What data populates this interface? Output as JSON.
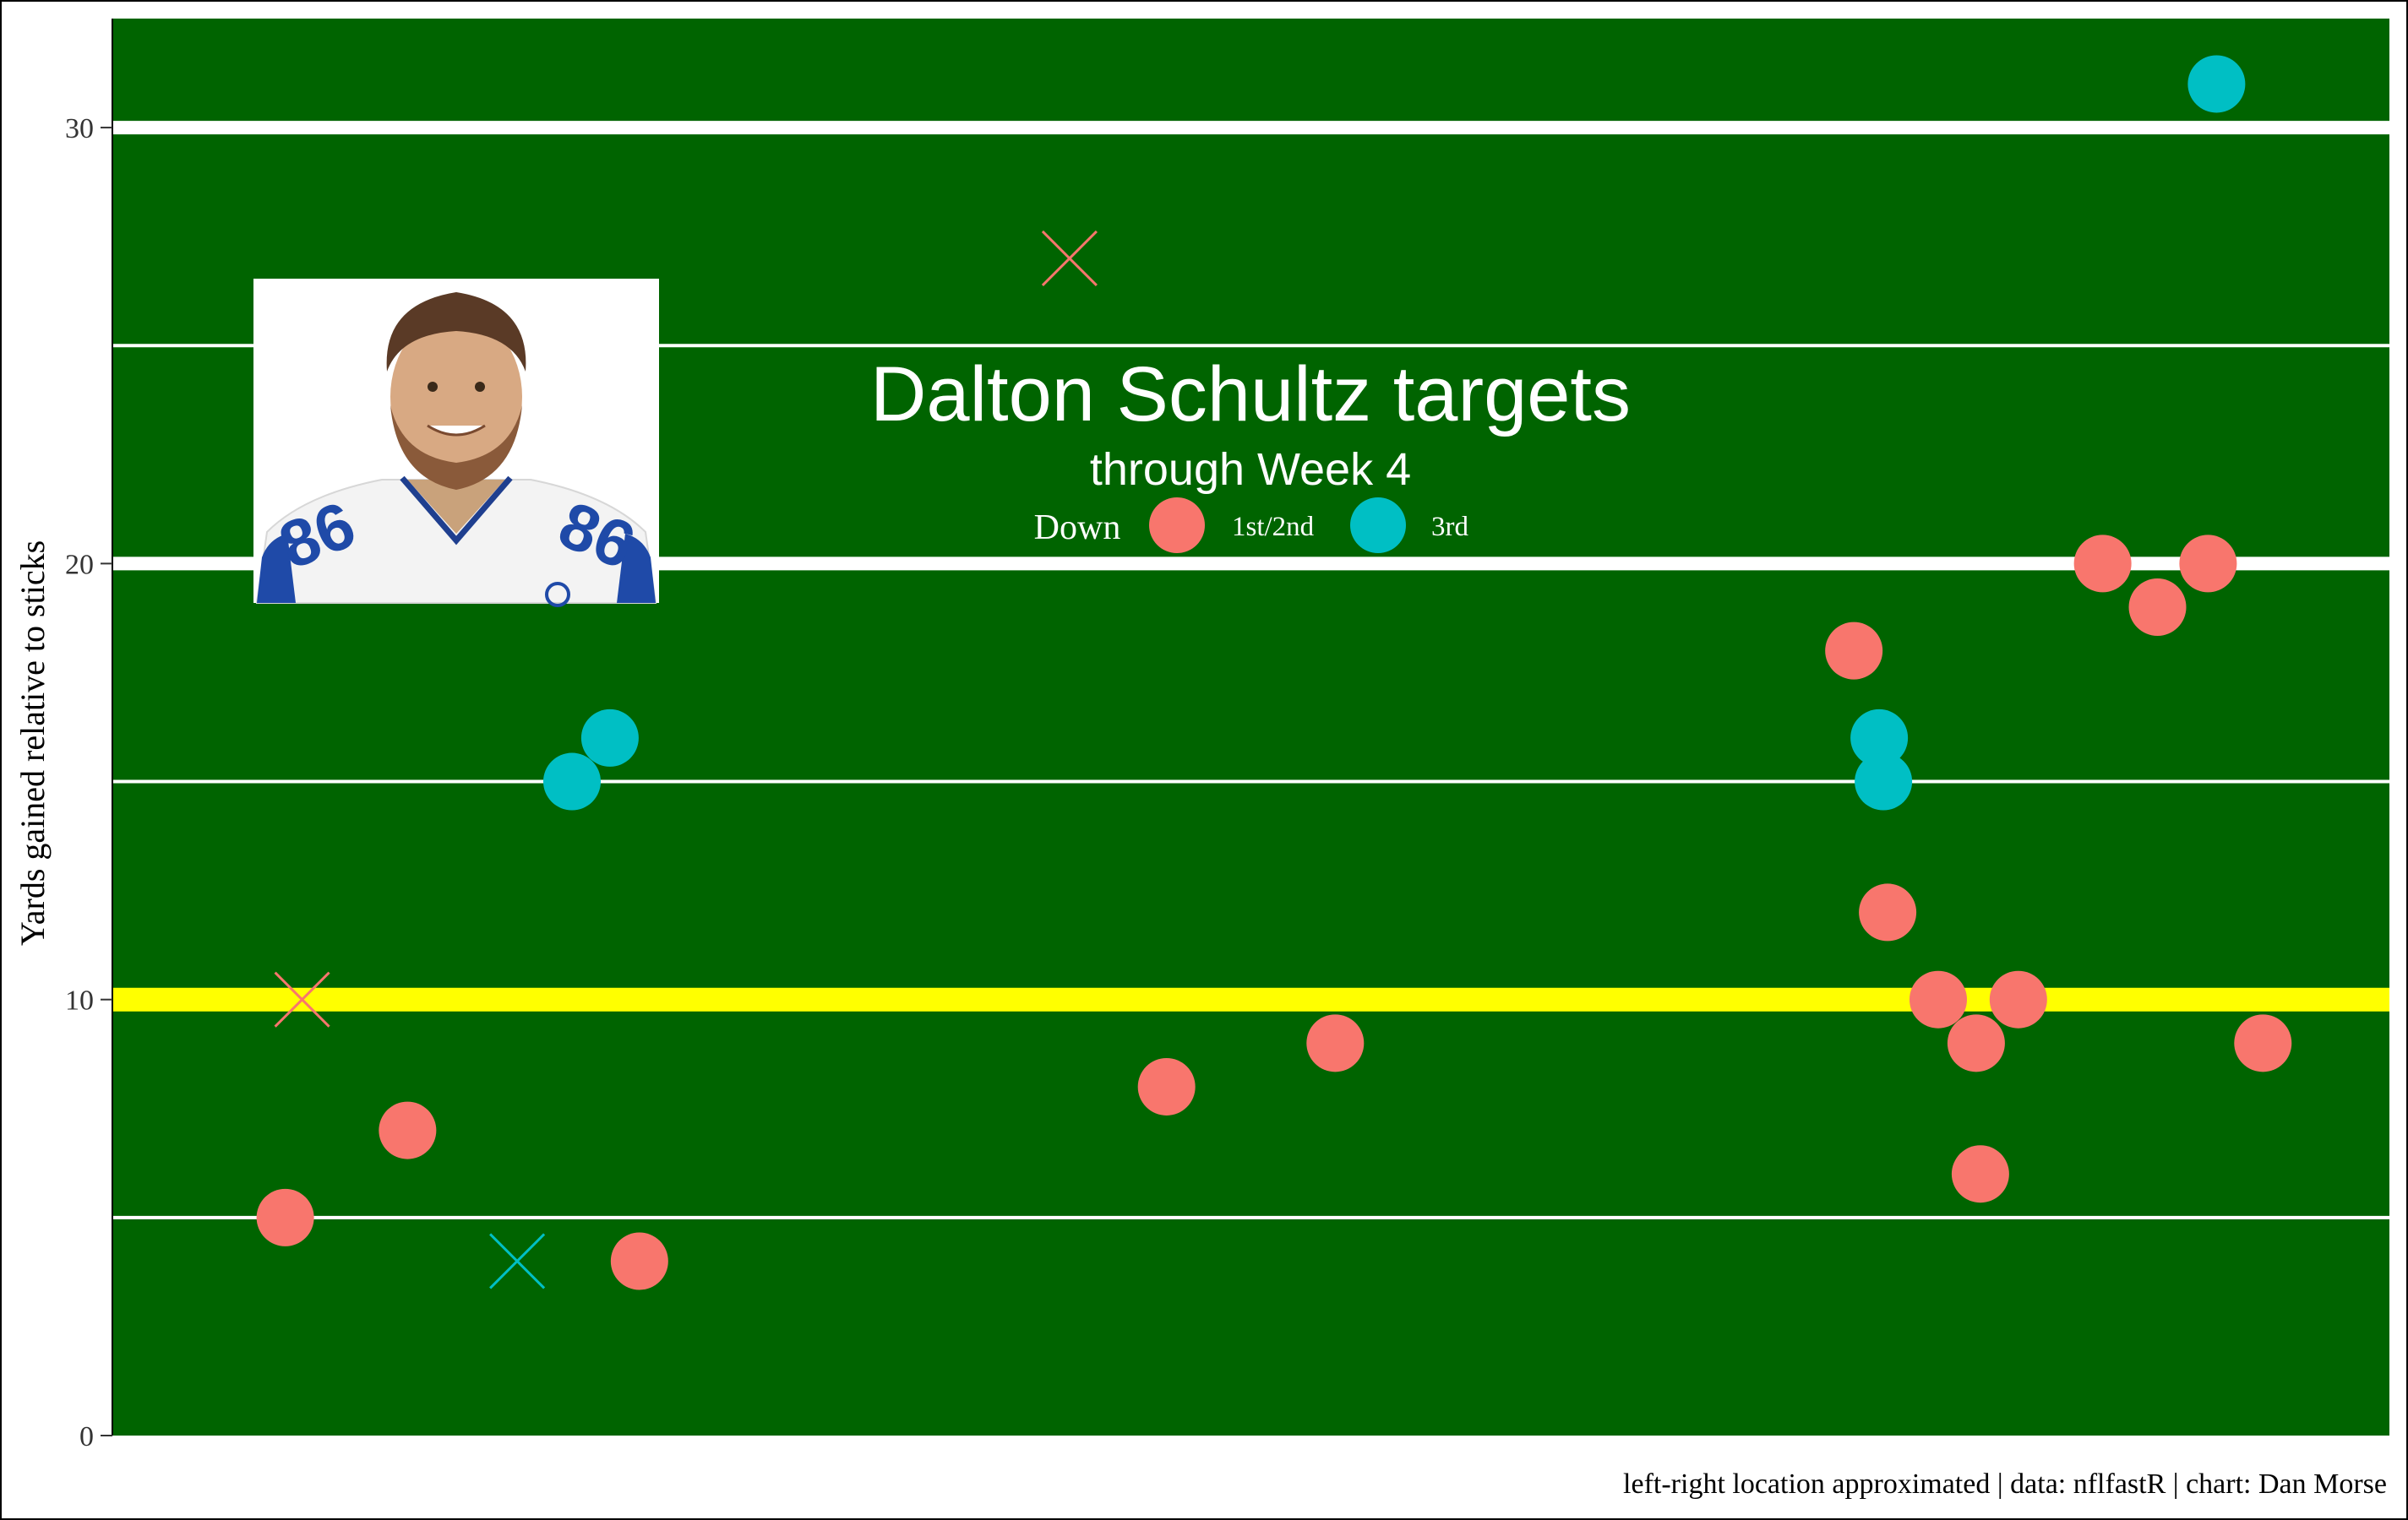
{
  "chart_data": {
    "type": "scatter",
    "title": "Dalton Schultz targets",
    "subtitle": "through Week 4",
    "ylabel": "Yards gained relative to sticks",
    "xlabel": "",
    "caption": "left-right location approximated | data: nflfastR | chart: Dan Morse",
    "ylim": [
      0,
      32.5
    ],
    "xlim": [
      -27,
      27
    ],
    "y_ticks": [
      0,
      10,
      20,
      30
    ],
    "grid": true,
    "first_down_line": 10,
    "legend": {
      "title": "Down",
      "placement": "top-center",
      "entries": [
        {
          "label": "1st/2nd",
          "color": "#F8766D"
        },
        {
          "label": "3rd",
          "color": "#00BFC4"
        }
      ]
    },
    "headshot_caption": "Dallas Cowboys jersey 86",
    "colors": {
      "field": "#006400",
      "yard_lines": "#ffffff",
      "first_down_line": "#ffff00",
      "down_1_2": "#F8766D",
      "down_3": "#00BFC4"
    },
    "points": [
      {
        "x": -22.9,
        "y": 5,
        "down": "1st/2nd",
        "outcome": "complete"
      },
      {
        "x": -22.5,
        "y": 10,
        "down": "1st/2nd",
        "outcome": "incomplete"
      },
      {
        "x": -20.0,
        "y": 7,
        "down": "1st/2nd",
        "outcome": "complete"
      },
      {
        "x": -17.4,
        "y": 4,
        "down": "3rd",
        "outcome": "incomplete"
      },
      {
        "x": -16.1,
        "y": 15,
        "down": "3rd",
        "outcome": "complete"
      },
      {
        "x": -15.2,
        "y": 16,
        "down": "3rd",
        "outcome": "complete"
      },
      {
        "x": -14.5,
        "y": 4,
        "down": "1st/2nd",
        "outcome": "complete"
      },
      {
        "x": -4.3,
        "y": 27,
        "down": "1st/2nd",
        "outcome": "incomplete"
      },
      {
        "x": -2.0,
        "y": 8,
        "down": "1st/2nd",
        "outcome": "complete"
      },
      {
        "x": 2.0,
        "y": 9,
        "down": "1st/2nd",
        "outcome": "complete"
      },
      {
        "x": 14.3,
        "y": 18,
        "down": "1st/2nd",
        "outcome": "complete"
      },
      {
        "x": 14.9,
        "y": 16,
        "down": "3rd",
        "outcome": "complete"
      },
      {
        "x": 15.0,
        "y": 15,
        "down": "3rd",
        "outcome": "complete"
      },
      {
        "x": 15.1,
        "y": 12,
        "down": "1st/2nd",
        "outcome": "complete"
      },
      {
        "x": 16.3,
        "y": 10,
        "down": "1st/2nd",
        "outcome": "complete"
      },
      {
        "x": 17.2,
        "y": 9,
        "down": "1st/2nd",
        "outcome": "complete"
      },
      {
        "x": 17.3,
        "y": 6,
        "down": "1st/2nd",
        "outcome": "complete"
      },
      {
        "x": 18.2,
        "y": 10,
        "down": "1st/2nd",
        "outcome": "complete"
      },
      {
        "x": 20.2,
        "y": 20,
        "down": "1st/2nd",
        "outcome": "complete"
      },
      {
        "x": 21.5,
        "y": 19,
        "down": "1st/2nd",
        "outcome": "complete"
      },
      {
        "x": 22.7,
        "y": 20,
        "down": "1st/2nd",
        "outcome": "complete"
      },
      {
        "x": 22.9,
        "y": 31,
        "down": "3rd",
        "outcome": "complete"
      },
      {
        "x": 24.0,
        "y": 9,
        "down": "1st/2nd",
        "outcome": "complete"
      }
    ]
  }
}
